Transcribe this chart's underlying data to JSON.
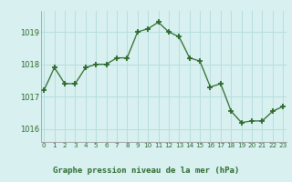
{
  "x": [
    0,
    1,
    2,
    3,
    4,
    5,
    6,
    7,
    8,
    9,
    10,
    11,
    12,
    13,
    14,
    15,
    16,
    17,
    18,
    19,
    20,
    21,
    22,
    23
  ],
  "y": [
    1017.2,
    1017.9,
    1017.4,
    1017.4,
    1017.9,
    1018.0,
    1018.0,
    1018.2,
    1018.2,
    1019.0,
    1019.1,
    1019.3,
    1019.0,
    1018.85,
    1018.2,
    1018.1,
    1017.3,
    1017.4,
    1016.55,
    1016.2,
    1016.25,
    1016.25,
    1016.55,
    1016.7
  ],
  "line_color": "#2d6a2d",
  "marker": "+",
  "bg_color": "#d8f0f0",
  "grid_color": "#b8dede",
  "xlabel": "Graphe pression niveau de la mer (hPa)",
  "tick_color": "#2d6a2d",
  "tick_labels": [
    "0",
    "1",
    "2",
    "3",
    "4",
    "5",
    "6",
    "7",
    "8",
    "9",
    "10",
    "11",
    "12",
    "13",
    "14",
    "15",
    "16",
    "17",
    "18",
    "19",
    "20",
    "21",
    "22",
    "23"
  ],
  "yticks": [
    1016,
    1017,
    1018,
    1019
  ],
  "ylim": [
    1015.6,
    1019.65
  ],
  "xlim": [
    -0.3,
    23.3
  ]
}
